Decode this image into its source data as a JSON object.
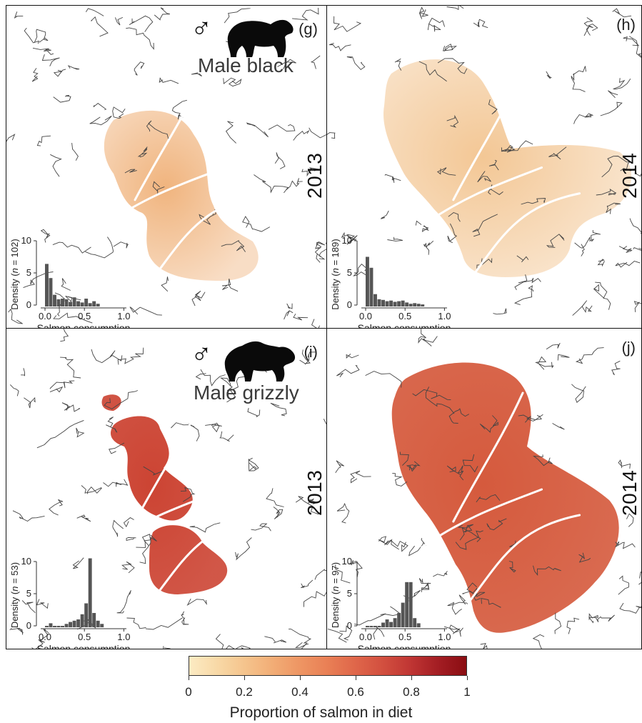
{
  "panels": [
    {
      "letter": "(g)",
      "year": "2013",
      "label": "Male black",
      "symbol": "♂",
      "bear": "black-bear-icon",
      "n": "102",
      "hist": [
        6.4,
        4.2,
        1.6,
        0.9,
        1.0,
        0.9,
        0.5,
        1.2,
        0.6,
        0.4,
        1.0,
        0.3,
        0.6,
        0.2
      ],
      "ymax": 10,
      "yticks": [
        "0",
        "5",
        "10"
      ],
      "fill": "#f0b47e"
    },
    {
      "letter": "(h)",
      "year": "2014",
      "label": "",
      "symbol": "",
      "bear": "",
      "n": "189",
      "hist": [
        7.5,
        5.8,
        1.7,
        0.9,
        0.8,
        0.6,
        0.7,
        0.5,
        0.6,
        0.7,
        0.4,
        0.2,
        0.3,
        0.2,
        0.1
      ],
      "ymax": 10,
      "yticks": [
        "0",
        "5",
        "10"
      ],
      "fill": "#f3c795"
    },
    {
      "letter": "(i)",
      "year": "2013",
      "label": "Male grizzly",
      "symbol": "♂",
      "bear": "grizzly-bear-icon",
      "n": "53",
      "hist": [
        0,
        0.4,
        0,
        0,
        0,
        0.3,
        0.6,
        0.8,
        1.0,
        1.8,
        3.5,
        10.5,
        2.0,
        0.8,
        0.3
      ],
      "ymax": 10,
      "yticks": [
        "0",
        "5",
        "10"
      ],
      "fill": "#cc4433"
    },
    {
      "letter": "(j)",
      "year": "2014",
      "label": "",
      "symbol": "",
      "bear": "",
      "n": "97",
      "hist": [
        0,
        0,
        0,
        0,
        0.5,
        1.0,
        0.6,
        1.2,
        2.0,
        3.6,
        6.8,
        6.8,
        1.2,
        0.4
      ],
      "ymax": 10,
      "yticks": [
        "0",
        "5",
        "10"
      ],
      "fill": "#d55a3d"
    }
  ],
  "inset": {
    "ylabel_prefix": "Density (",
    "ylabel_n": "n",
    "ylabel_eq": " = ",
    "ylabel_suffix": ")",
    "xlabel": "Salmon consumption",
    "xticks": [
      "0.0",
      "0.5",
      "1.0"
    ]
  },
  "colorbar": {
    "title": "Proportion of salmon in diet",
    "ticks": [
      "0",
      "0.2",
      "0.4",
      "0.6",
      "0.8",
      "1"
    ],
    "min_color": "#fcebc3",
    "max_color": "#8a0d12"
  }
}
